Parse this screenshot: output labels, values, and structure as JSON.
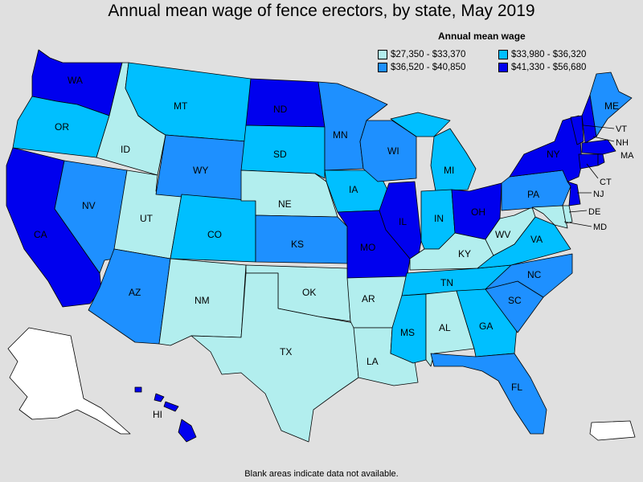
{
  "title": "Annual mean wage of fence erectors, by state, May 2019",
  "legend": {
    "title": "Annual mean wage",
    "items": [
      {
        "label": "$27,350 - $33,370",
        "color": "#b2eeee"
      },
      {
        "label": "$33,980 - $36,320",
        "color": "#00bfff"
      },
      {
        "label": "$36,520 - $40,850",
        "color": "#1e90ff"
      },
      {
        "label": "$41,330 - $56,680",
        "color": "#0000ee"
      }
    ]
  },
  "footnote": "Blank areas indicate data not available.",
  "state_labels": {
    "WA": "WA",
    "OR": "OR",
    "CA": "CA",
    "ID": "ID",
    "NV": "NV",
    "UT": "UT",
    "AZ": "AZ",
    "MT": "MT",
    "WY": "WY",
    "CO": "CO",
    "NM": "NM",
    "ND": "ND",
    "SD": "SD",
    "NE": "NE",
    "KS": "KS",
    "OK": "OK",
    "TX": "TX",
    "MN": "MN",
    "IA": "IA",
    "MO": "MO",
    "AR": "AR",
    "LA": "LA",
    "WI": "WI",
    "IL": "IL",
    "MI": "MI",
    "IN": "IN",
    "OH": "OH",
    "KY": "KY",
    "TN": "TN",
    "MS": "MS",
    "AL": "AL",
    "GA": "GA",
    "FL": "FL",
    "SC": "SC",
    "NC": "NC",
    "VA": "VA",
    "WV": "WV",
    "PA": "PA",
    "NY": "NY",
    "ME": "ME",
    "VT": "VT",
    "NH": "NH",
    "MA": "MA",
    "CT": "CT",
    "NJ": "NJ",
    "DE": "DE",
    "MD": "MD",
    "HI": "HI"
  }
}
